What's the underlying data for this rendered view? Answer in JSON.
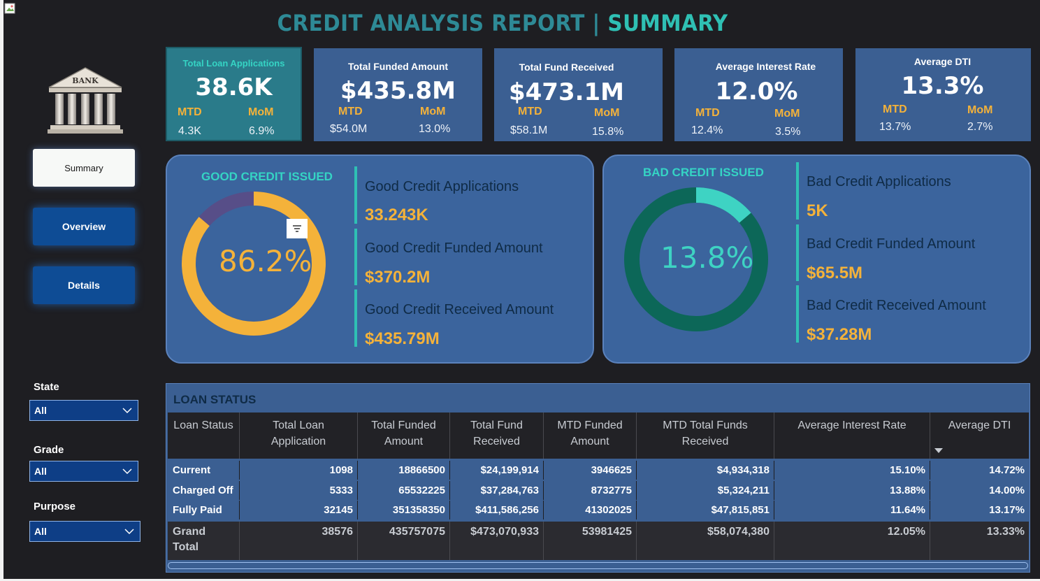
{
  "header": {
    "title_left": "CREDIT ANALYSIS REPORT |",
    "title_right": "SUMMARY"
  },
  "logo": {
    "text": "BANK"
  },
  "nav": {
    "summary": "Summary",
    "overview": "Overview",
    "details": "Details"
  },
  "filters": [
    {
      "label": "State",
      "value": "All"
    },
    {
      "label": "Grade",
      "value": "All"
    },
    {
      "label": "Purpose",
      "value": "All"
    }
  ],
  "kpis": [
    {
      "title": "Total Loan Applications",
      "value": "38.6K",
      "mtd_label": "MTD",
      "mom_label": "MoM",
      "mtd": "4.3K",
      "mom": "6.9%"
    },
    {
      "title": "Total Funded Amount",
      "value": "$435.8M",
      "mtd_label": "MTD",
      "mom_label": "MoM",
      "mtd": "$54.0M",
      "mom": "13.0%"
    },
    {
      "title": "Total Fund Received",
      "value": "$473.1M",
      "mtd_label": "MTD",
      "mom_label": "MoM",
      "mtd": "$58.1M",
      "mom": "15.8%"
    },
    {
      "title": "Average Interest Rate",
      "value": "12.0%",
      "mtd_label": "MTD",
      "mom_label": "MoM",
      "mtd": "12.4%",
      "mom": "3.5%"
    },
    {
      "title": "Average DTI",
      "value": "13.3%",
      "mtd_label": "MTD",
      "mom_label": "MoM",
      "mtd": "13.7%",
      "mom": "2.7%"
    }
  ],
  "good": {
    "title": "GOOD CREDIT ISSUED",
    "percent": "86.2%",
    "share": 0.862,
    "colors": {
      "main": "#f4b23a",
      "rest": "#574e88"
    },
    "metrics": [
      {
        "label": "Good Credit Applications",
        "value": "33.243K"
      },
      {
        "label": "Good Credit Funded Amount",
        "value": "$370.2M"
      },
      {
        "label": "Good Credit Received Amount",
        "value": "$435.79M"
      }
    ]
  },
  "bad": {
    "title": "BAD CREDIT ISSUED",
    "percent": "13.8%",
    "share": 0.138,
    "colors": {
      "main": "#3ed3c3",
      "rest": "#0c6758"
    },
    "metrics": [
      {
        "label": "Bad Credit Applications",
        "value": "5K"
      },
      {
        "label": "Bad Credit Funded Amount",
        "value": "$65.5M"
      },
      {
        "label": "Bad Credit Received Amount",
        "value": "$37.28M"
      }
    ]
  },
  "table": {
    "title": "LOAN STATUS",
    "headers": [
      "Loan Status",
      "Total Loan Application",
      "Total Funded Amount",
      "Total Fund Received",
      "MTD Funded Amount",
      "MTD Total Funds Received",
      "Average Interest Rate",
      "Average DTI"
    ],
    "rows": [
      [
        "Current",
        "1098",
        "18866500",
        "$24,199,914",
        "3946625",
        "$4,934,318",
        "15.10%",
        "14.72%"
      ],
      [
        "Charged Off",
        "5333",
        "65532225",
        "$37,284,763",
        "8732775",
        "$5,324,211",
        "13.88%",
        "14.00%"
      ],
      [
        "Fully Paid",
        "32145",
        "351358350",
        "$411,586,256",
        "41302025",
        "$47,815,851",
        "11.64%",
        "13.17%"
      ]
    ],
    "grand": [
      "Grand Total",
      "38576",
      "435757075",
      "$473,070,933",
      "53981425",
      "$58,074,380",
      "12.05%",
      "13.33%"
    ]
  }
}
